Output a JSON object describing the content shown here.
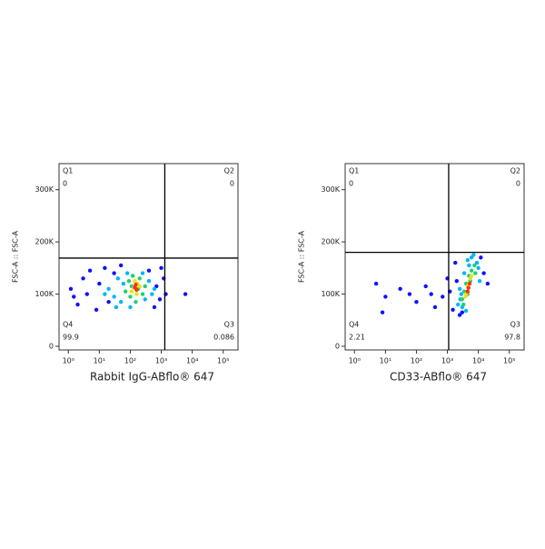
{
  "chart_data": [
    {
      "type": "scatter",
      "x_label": "Rabbit IgG-ABflo® 647",
      "y_label": "FSC-A :: FSC-A",
      "xscale": "log",
      "xlim": [
        0.5,
        300000
      ],
      "ylim": [
        -7000,
        350000
      ],
      "xticks": [
        {
          "value": 1,
          "label": "10⁰"
        },
        {
          "value": 10,
          "label": "10¹"
        },
        {
          "value": 100,
          "label": "10²"
        },
        {
          "value": 1000,
          "label": "10³"
        },
        {
          "value": 10000,
          "label": "10⁴"
        },
        {
          "value": 100000,
          "label": "10⁵"
        }
      ],
      "yticks": [
        0,
        {
          "value": 100000,
          "label": "100K"
        },
        {
          "value": 200000,
          "label": "200K"
        },
        {
          "value": 300000,
          "label": "300K"
        }
      ],
      "gate": {
        "x": 1300,
        "y": 169000
      },
      "quadrants": [
        {
          "name": "Q1",
          "value": 0
        },
        {
          "name": "Q2",
          "value": 0
        },
        {
          "name": "Q3",
          "value": 0.086
        },
        {
          "name": "Q4",
          "value": 99.9
        }
      ],
      "series": [
        {
          "color": "#1010ff",
          "x": [
            1.5,
            3,
            2,
            5,
            8,
            15,
            30,
            600,
            900,
            1200,
            1000,
            6000,
            1.2,
            4,
            10,
            20,
            50,
            400,
            700,
            1400
          ],
          "y": [
            95000,
            130000,
            80000,
            145000,
            70000,
            150000,
            140000,
            75000,
            90000,
            130000,
            150000,
            100000,
            110000,
            100000,
            120000,
            85000,
            155000,
            145000,
            115000,
            100000
          ]
        },
        {
          "color": "#00b4ff",
          "x": [
            20,
            30,
            40,
            50,
            60,
            80,
            300,
            400,
            500,
            250,
            15,
            35,
            600,
            100
          ],
          "y": [
            110000,
            95000,
            130000,
            85000,
            120000,
            140000,
            90000,
            125000,
            100000,
            140000,
            100000,
            75000,
            110000,
            75000
          ]
        },
        {
          "color": "#20d070",
          "x": [
            70,
            90,
            100,
            120,
            150,
            200,
            250,
            300,
            180,
            110
          ],
          "y": [
            105000,
            125000,
            95000,
            135000,
            85000,
            130000,
            100000,
            115000,
            110000,
            115000
          ]
        },
        {
          "color": "#e8e020",
          "x": [
            110,
            140,
            160,
            200,
            130,
            170
          ],
          "y": [
            105000,
            125000,
            100000,
            115000,
            112000,
            120000
          ]
        },
        {
          "color": "#ff3010",
          "x": [
            140,
            160,
            150
          ],
          "y": [
            113000,
            108000,
            118000
          ]
        }
      ]
    },
    {
      "type": "scatter",
      "x_label": "CD33-ABflo® 647",
      "y_label": "FSC-A :: FSC-A",
      "xscale": "log",
      "xlim": [
        0.5,
        300000
      ],
      "ylim": [
        -7000,
        350000
      ],
      "xticks": [
        {
          "value": 1,
          "label": "10⁰"
        },
        {
          "value": 10,
          "label": "10¹"
        },
        {
          "value": 100,
          "label": "10²"
        },
        {
          "value": 1000,
          "label": "10³"
        },
        {
          "value": 10000,
          "label": "10⁴"
        },
        {
          "value": 100000,
          "label": "10⁵"
        }
      ],
      "yticks": [
        0,
        {
          "value": 100000,
          "label": "100K"
        },
        {
          "value": 200000,
          "label": "200K"
        },
        {
          "value": 300000,
          "label": "300K"
        }
      ],
      "gate": {
        "x": 1100,
        "y": 180000
      },
      "quadrants": [
        {
          "name": "Q1",
          "value": 0
        },
        {
          "name": "Q2",
          "value": 0
        },
        {
          "name": "Q3",
          "value": 97.8
        },
        {
          "name": "Q4",
          "value": 2.21
        }
      ],
      "series": [
        {
          "color": "#1010ff",
          "x": [
            5,
            10,
            30,
            60,
            100,
            200,
            400,
            700,
            1000,
            1500,
            1800,
            12000,
            15000,
            2500,
            3000,
            20000,
            8,
            300,
            1200,
            2000
          ],
          "y": [
            120000,
            95000,
            110000,
            100000,
            85000,
            115000,
            75000,
            95000,
            130000,
            70000,
            160000,
            170000,
            140000,
            60000,
            65000,
            120000,
            65000,
            100000,
            105000,
            125000
          ]
        },
        {
          "color": "#00b4ff",
          "x": [
            2200,
            2800,
            3500,
            4500,
            6000,
            9000,
            2500,
            3000,
            7000,
            10000,
            4000,
            11000,
            2600,
            5000
          ],
          "y": [
            80000,
            100000,
            140000,
            165000,
            170000,
            160000,
            110000,
            75000,
            175000,
            150000,
            68000,
            125000,
            90000,
            155000
          ]
        },
        {
          "color": "#20d070",
          "x": [
            3000,
            3500,
            4000,
            5000,
            6000,
            7500,
            3300,
            4500,
            8000,
            5500
          ],
          "y": [
            90000,
            105000,
            120000,
            135000,
            145000,
            155000,
            80000,
            100000,
            140000,
            125000
          ]
        },
        {
          "color": "#e8e020",
          "x": [
            4000,
            4500,
            5000,
            5500,
            6000,
            3800
          ],
          "y": [
            100000,
            115000,
            120000,
            130000,
            135000,
            95000
          ]
        },
        {
          "color": "#ff3010",
          "x": [
            4800,
            5200,
            4500
          ],
          "y": [
            112000,
            120000,
            105000
          ]
        }
      ]
    }
  ]
}
